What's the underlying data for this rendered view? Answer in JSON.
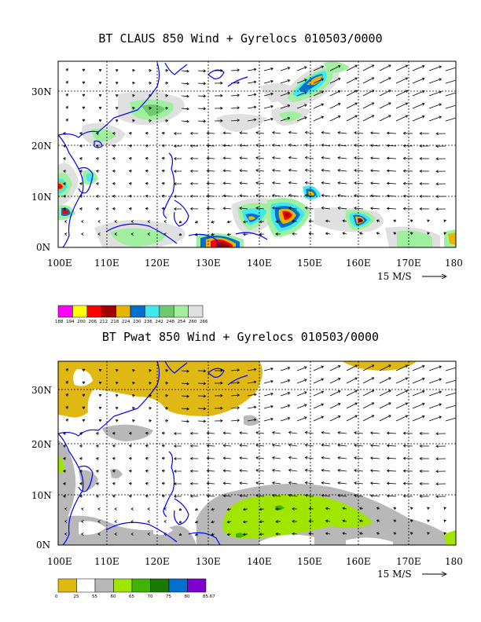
{
  "top": {
    "title": "BT CLAUS 850 Wind + Gyrelocs 010503/0000",
    "x_labels": [
      "100E",
      "110E",
      "120E",
      "130E",
      "140E",
      "150E",
      "160E",
      "170E",
      "180"
    ],
    "y_labels": [
      "30N",
      "20N",
      "10N",
      "0N"
    ],
    "scale_label": "15 M/S",
    "colorbar": {
      "colors": [
        "#ff00ff",
        "#ffff00",
        "#ff0000",
        "#a00000",
        "#e8b400",
        "#0070d0",
        "#40e8f0",
        "#70c870",
        "#a0f0a0",
        "#e0e0e0"
      ],
      "labels": [
        "188",
        "194",
        "200",
        "206",
        "212",
        "218",
        "224",
        "230",
        "236",
        "242",
        "248",
        "254",
        "260",
        "266"
      ]
    }
  },
  "bottom": {
    "title": "BT Pwat 850 Wind + Gyrelocs 010503/0000",
    "x_labels": [
      "100E",
      "110E",
      "120E",
      "130E",
      "140E",
      "150E",
      "160E",
      "170E",
      "180"
    ],
    "y_labels": [
      "30N",
      "20N",
      "10N",
      "0N"
    ],
    "scale_label": "15 M/S",
    "colorbar": {
      "colors": [
        "#e0b814",
        "#ffffff",
        "#b8b8b8",
        "#a0e600",
        "#40b400",
        "#1a7a00",
        "#0070d0",
        "#8000d0"
      ],
      "labels": [
        "0",
        "25",
        "55",
        "60",
        "65",
        "70",
        "75",
        "80",
        "85.67"
      ]
    }
  },
  "colors": {
    "coast": "#0000ff",
    "arrow": "#000000"
  }
}
